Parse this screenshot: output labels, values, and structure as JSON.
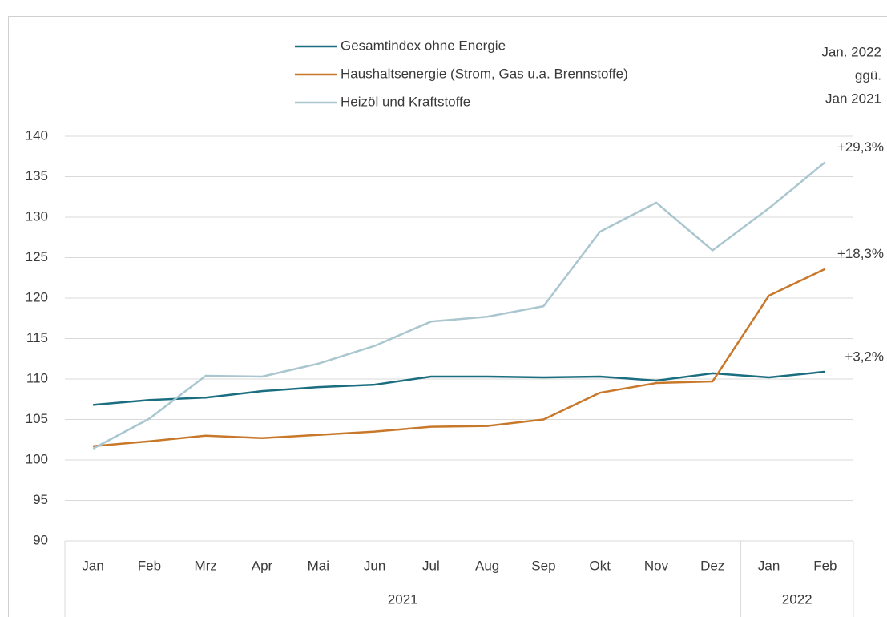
{
  "chart_data": {
    "type": "line",
    "categories": [
      "Jan",
      "Feb",
      "Mrz",
      "Apr",
      "Mai",
      "Jun",
      "Jul",
      "Aug",
      "Sep",
      "Okt",
      "Nov",
      "Dez",
      "Jan",
      "Feb"
    ],
    "year_groups": [
      {
        "label": "2021",
        "categories": 12
      },
      {
        "label": "2022",
        "categories": 2
      }
    ],
    "series": [
      {
        "name": "Gesamtindex ohne Energie",
        "color": "#1a6e80",
        "annotation": "+3,2%",
        "values": [
          106.8,
          107.4,
          107.7,
          108.5,
          109.0,
          109.3,
          110.3,
          110.3,
          110.2,
          110.3,
          109.8,
          110.7,
          110.2,
          110.9
        ]
      },
      {
        "name": "Haushaltsenergie (Strom, Gas u.a. Brennstoffe)",
        "color": "#c8782a",
        "annotation": "+18,3%",
        "values": [
          101.7,
          102.3,
          103.0,
          102.7,
          103.1,
          103.5,
          104.1,
          104.2,
          105.0,
          108.3,
          109.5,
          109.7,
          120.3,
          123.6
        ]
      },
      {
        "name": "Heizöl und Kraftstoffe",
        "color": "#aac6cf",
        "annotation": "+29,3%",
        "values": [
          101.4,
          105.1,
          110.4,
          110.3,
          111.9,
          114.1,
          117.1,
          117.7,
          119.0,
          128.2,
          131.8,
          125.9,
          131.1,
          136.8
        ]
      }
    ],
    "annotation_header": [
      "Jan. 2022",
      "ggü.",
      "Jan 2021"
    ],
    "ylim": [
      90,
      140
    ],
    "yticks": [
      90,
      95,
      100,
      105,
      110,
      115,
      120,
      125,
      130,
      135,
      140
    ],
    "grid": true
  }
}
